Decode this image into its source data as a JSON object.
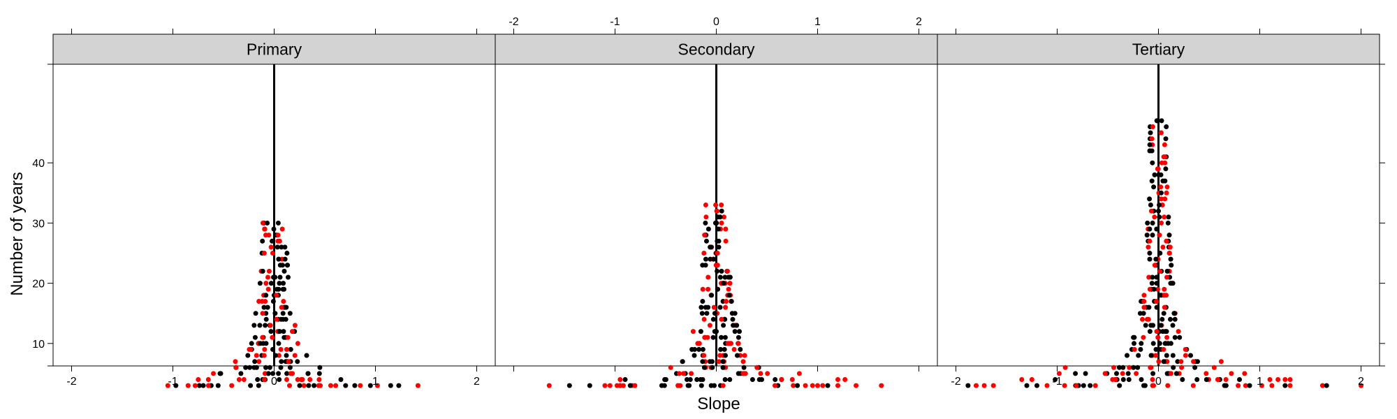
{
  "chart_data": {
    "type": "scatter",
    "xlabel": "Slope",
    "ylabel": "Number of years",
    "xlim": [
      -2.2,
      2.2
    ],
    "ylim": [
      0,
      50
    ],
    "x_ticks": [
      -2,
      -1,
      0,
      1,
      2
    ],
    "y_ticks": [
      10,
      20,
      30,
      40
    ],
    "colors": {
      "series_a": "#000000",
      "series_b": "#ff0000",
      "strip": "#d3d3d3",
      "reference_line": "#000000"
    },
    "reference_line_x": 0,
    "panels": [
      {
        "name": "Primary",
        "max_years": 30,
        "tail_points": [
          {
            "x": -1.05,
            "y": 3,
            "s": 1
          },
          {
            "x": -0.97,
            "y": 3,
            "s": 0
          },
          {
            "x": -0.85,
            "y": 3,
            "s": 1
          },
          {
            "x": -0.78,
            "y": 3,
            "s": 1
          },
          {
            "x": -0.7,
            "y": 3,
            "s": 0
          },
          {
            "x": -0.75,
            "y": 4,
            "s": 1
          },
          {
            "x": -0.65,
            "y": 4,
            "s": 1
          },
          {
            "x": -0.6,
            "y": 5,
            "s": 1
          },
          {
            "x": 0.85,
            "y": 3,
            "s": 1
          },
          {
            "x": 0.95,
            "y": 3,
            "s": 0
          },
          {
            "x": 1.02,
            "y": 3,
            "s": 1
          },
          {
            "x": 1.15,
            "y": 3,
            "s": 0
          },
          {
            "x": 1.23,
            "y": 3,
            "s": 0
          },
          {
            "x": 1.42,
            "y": 3,
            "s": 1
          }
        ]
      },
      {
        "name": "Secondary",
        "max_years": 33,
        "tail_points": [
          {
            "x": -1.65,
            "y": 3,
            "s": 1
          },
          {
            "x": -1.45,
            "y": 3,
            "s": 0
          },
          {
            "x": -1.25,
            "y": 3,
            "s": 0
          },
          {
            "x": -1.1,
            "y": 3,
            "s": 1
          },
          {
            "x": -1.05,
            "y": 3,
            "s": 1
          },
          {
            "x": -0.98,
            "y": 3,
            "s": 1
          },
          {
            "x": -0.95,
            "y": 3,
            "s": 1
          },
          {
            "x": -0.95,
            "y": 4,
            "s": 1
          },
          {
            "x": -0.9,
            "y": 4,
            "s": 0
          },
          {
            "x": -0.85,
            "y": 3,
            "s": 0
          },
          {
            "x": 0.75,
            "y": 4,
            "s": 1
          },
          {
            "x": 0.82,
            "y": 5,
            "s": 1
          },
          {
            "x": 0.88,
            "y": 3,
            "s": 1
          },
          {
            "x": 0.95,
            "y": 3,
            "s": 1
          },
          {
            "x": 1.0,
            "y": 3,
            "s": 1
          },
          {
            "x": 1.05,
            "y": 3,
            "s": 1
          },
          {
            "x": 1.1,
            "y": 3,
            "s": 0
          },
          {
            "x": 1.2,
            "y": 3,
            "s": 1
          },
          {
            "x": 1.2,
            "y": 4,
            "s": 1
          },
          {
            "x": 1.27,
            "y": 4,
            "s": 1
          },
          {
            "x": 1.38,
            "y": 3,
            "s": 1
          },
          {
            "x": 1.63,
            "y": 3,
            "s": 1
          }
        ]
      },
      {
        "name": "Tertiary",
        "max_years": 47,
        "tail_points": [
          {
            "x": -1.88,
            "y": 3,
            "s": 0
          },
          {
            "x": -1.8,
            "y": 3,
            "s": 1
          },
          {
            "x": -1.72,
            "y": 3,
            "s": 1
          },
          {
            "x": -1.63,
            "y": 3,
            "s": 1
          },
          {
            "x": -1.35,
            "y": 4,
            "s": 1
          },
          {
            "x": -1.3,
            "y": 3,
            "s": 0
          },
          {
            "x": -1.25,
            "y": 4,
            "s": 1
          },
          {
            "x": -1.2,
            "y": 3,
            "s": 0
          },
          {
            "x": -1.1,
            "y": 3,
            "s": 1
          },
          {
            "x": -1.02,
            "y": 4,
            "s": 0
          },
          {
            "x": -0.98,
            "y": 5,
            "s": 1
          },
          {
            "x": -0.92,
            "y": 6,
            "s": 1
          },
          {
            "x": -0.82,
            "y": 5,
            "s": 0
          },
          {
            "x": -0.72,
            "y": 5,
            "s": 0
          },
          {
            "x": 0.55,
            "y": 6,
            "s": 1
          },
          {
            "x": 0.62,
            "y": 7,
            "s": 1
          },
          {
            "x": 0.72,
            "y": 5,
            "s": 1
          },
          {
            "x": 0.8,
            "y": 4,
            "s": 0
          },
          {
            "x": 0.85,
            "y": 5,
            "s": 1
          },
          {
            "x": 0.9,
            "y": 3,
            "s": 0
          },
          {
            "x": 1.02,
            "y": 3,
            "s": 1
          },
          {
            "x": 1.1,
            "y": 4,
            "s": 1
          },
          {
            "x": 1.12,
            "y": 3,
            "s": 1
          },
          {
            "x": 1.18,
            "y": 4,
            "s": 1
          },
          {
            "x": 1.25,
            "y": 3,
            "s": 0
          },
          {
            "x": 1.25,
            "y": 4,
            "s": 1
          },
          {
            "x": 1.3,
            "y": 4,
            "s": 1
          },
          {
            "x": 1.3,
            "y": 3,
            "s": 1
          },
          {
            "x": 1.62,
            "y": 3,
            "s": 1
          },
          {
            "x": 1.66,
            "y": 3,
            "s": 0
          },
          {
            "x": 2.0,
            "y": 3,
            "s": 1
          }
        ]
      }
    ]
  }
}
